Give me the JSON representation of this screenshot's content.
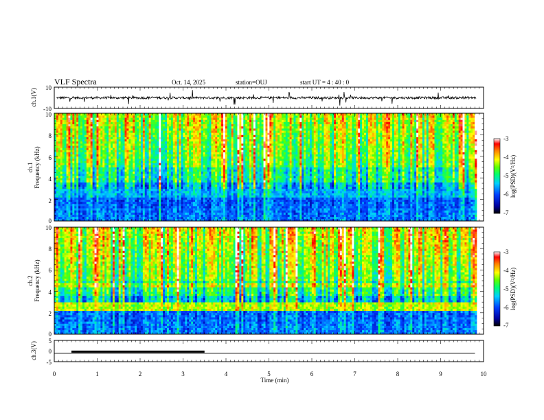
{
  "header": {
    "title": "VLF Spectra",
    "date": "Oct. 14, 2025",
    "station": "station=OUJ",
    "start": "start  UT =   4 : 40 : 0"
  },
  "chart_data": [
    {
      "type": "line",
      "panel": "ch1-waveform",
      "ylabel": "ch.1(V)",
      "ylim": [
        -10,
        10
      ],
      "yticks": [
        "10",
        "-10"
      ],
      "xlim": [
        0,
        10
      ]
    },
    {
      "type": "heatmap",
      "panel": "ch1-spectrogram",
      "ylabel_line1": "ch.1",
      "ylabel_line2": "Frequency (kHz)",
      "ylim": [
        0,
        10
      ],
      "yticks": [
        "0",
        "2",
        "4",
        "6",
        "8",
        "10"
      ],
      "xlim": [
        0,
        10
      ],
      "colorbar": {
        "label": "log(PSD)(V²/Hz)",
        "range": [
          -7,
          -3
        ],
        "ticks": [
          "-3",
          "-4",
          "-5",
          "-6",
          "-7"
        ]
      }
    },
    {
      "type": "heatmap",
      "panel": "ch2-spectrogram",
      "ylabel_line1": "ch.2",
      "ylabel_line2": "Frequency (kHz)",
      "ylim": [
        0,
        10
      ],
      "yticks": [
        "0",
        "2",
        "4",
        "6",
        "8",
        "10"
      ],
      "xlim": [
        0,
        10
      ],
      "colorbar": {
        "label": "log(PSD)(V²/Hz)",
        "range": [
          -7,
          -3
        ],
        "ticks": [
          "-3",
          "-4",
          "-5",
          "-6",
          "-7"
        ]
      }
    },
    {
      "type": "line",
      "panel": "ch3-waveform",
      "ylabel": "ch.3(V)",
      "ylim": [
        -5,
        5
      ],
      "yticks": [
        "5",
        "0",
        "-5"
      ],
      "xlim": [
        0,
        10
      ],
      "xlabel": "Time  (min)",
      "xticks": [
        "0",
        "1",
        "2",
        "3",
        "4",
        "5",
        "6",
        "7",
        "8",
        "9",
        "10"
      ],
      "series": [
        {
          "x": [
            0,
            9.8
          ],
          "y": [
            -1,
            -1
          ]
        },
        {
          "x": [
            0.4,
            3.5
          ],
          "y": [
            -0.3,
            -0.3
          ]
        }
      ]
    }
  ]
}
